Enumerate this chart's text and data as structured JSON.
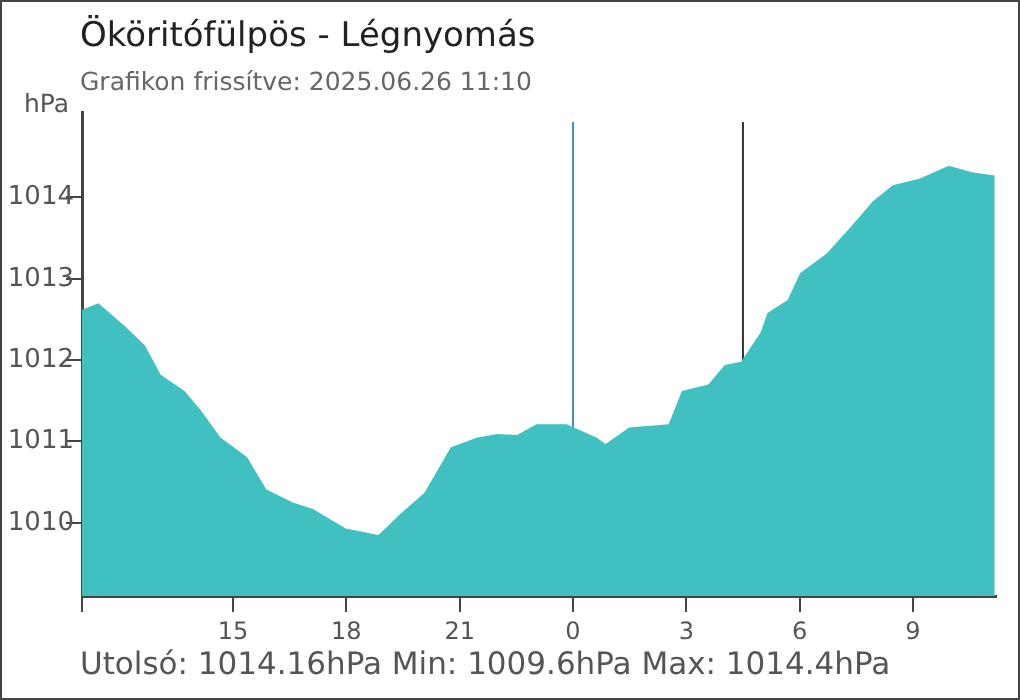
{
  "chart_data": {
    "type": "area",
    "title": "Ököritófülpös - Légnyomás",
    "subtitle": "Grafikon frissítve: 2025.06.26 11:10",
    "ylabel": "hPa",
    "annotations": [
      "Utolsó: 1014.16hPa  Min: 1009.6hPa  Max: 1014.4hPa"
    ],
    "x": [
      "2025-06-25T11:00",
      "2025-06-25T11:26",
      "2025-06-25T12:08",
      "2025-06-25T12:40",
      "2025-06-25T13:05",
      "2025-06-25T13:43",
      "2025-06-25T14:08",
      "2025-06-25T14:40",
      "2025-06-25T15:22",
      "2025-06-25T15:53",
      "2025-06-25T16:35",
      "2025-06-25T17:07",
      "2025-06-25T17:59",
      "2025-06-25T18:51",
      "2025-06-25T19:23",
      "2025-06-25T20:04",
      "2025-06-25T20:25",
      "2025-06-25T20:46",
      "2025-06-25T21:28",
      "2025-06-25T22:00",
      "2025-06-25T22:31",
      "2025-06-25T23:02",
      "2025-06-25T23:50",
      "2025-06-26T00:37",
      "2025-06-26T00:52",
      "2025-06-26T01:29",
      "2025-06-26T02:32",
      "2025-06-26T02:53",
      "2025-06-26T03:35",
      "2025-06-26T04:01",
      "2025-06-26T04:27",
      "2025-06-26T04:58",
      "2025-06-26T05:09",
      "2025-06-26T05:41",
      "2025-06-26T06:01",
      "2025-06-26T06:43",
      "2025-06-26T07:25",
      "2025-06-26T07:56",
      "2025-06-26T08:28",
      "2025-06-26T09:10",
      "2025-06-26T09:57",
      "2025-06-26T10:34",
      "2025-06-26T11:10"
    ],
    "series": [
      {
        "color": "#40c0c0",
        "values": [
          1012.62,
          1012.7,
          1012.42,
          1012.18,
          1011.82,
          1011.62,
          1011.39,
          1011.05,
          1010.81,
          1010.41,
          1010.25,
          1010.17,
          1009.93,
          1009.85,
          1010.09,
          1010.37,
          1010.65,
          1010.93,
          1011.05,
          1011.09,
          1011.08,
          1011.21,
          1011.21,
          1011.05,
          1010.97,
          1011.17,
          1011.21,
          1011.62,
          1011.7,
          1011.94,
          1011.98,
          1012.34,
          1012.58,
          1012.74,
          1013.07,
          1013.31,
          1013.67,
          1013.95,
          1014.15,
          1014.23,
          1014.39,
          1014.31,
          1014.27
        ]
      }
    ],
    "xlim": [
      "2025-06-25T11:00",
      "2025-06-26T11:12"
    ],
    "xticks": [
      {
        "value": "2025-06-25T11:00",
        "label": null
      },
      {
        "value": "2025-06-25T15:00",
        "label": "15"
      },
      {
        "value": "2025-06-25T18:00",
        "label": "18"
      },
      {
        "value": "2025-06-25T21:00",
        "label": "21"
      },
      {
        "value": "2025-06-26T00:00",
        "label": "0"
      },
      {
        "value": "2025-06-26T03:00",
        "label": "3"
      },
      {
        "value": "2025-06-26T06:00",
        "label": "6"
      },
      {
        "value": "2025-06-26T09:00",
        "label": "9"
      }
    ],
    "ylim": [
      1009.1,
      1015.05
    ],
    "yticks": [
      1010,
      1011,
      1012,
      1013,
      1014
    ],
    "ref_lines": [
      {
        "axis": "x",
        "value": "2025-06-26T00:00",
        "color": "#3a8fd0"
      },
      {
        "axis": "x",
        "value": "2025-06-26T04:30",
        "color": "#333333"
      }
    ],
    "grid": false,
    "legend": false
  }
}
